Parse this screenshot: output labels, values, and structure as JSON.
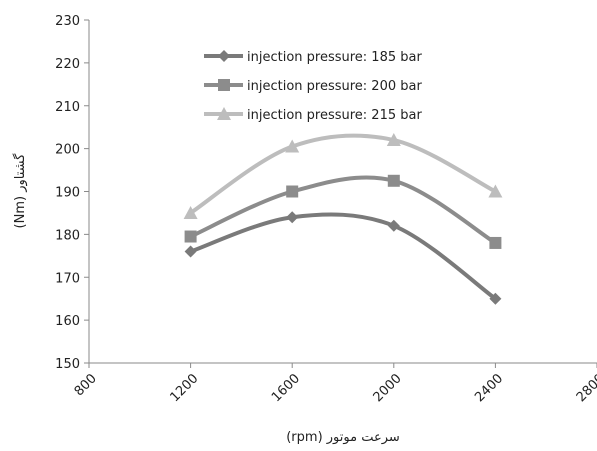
{
  "chart_data": {
    "type": "line",
    "title": "",
    "xlabel": "سرعت موتور (rpm)",
    "ylabel": "گشتاور (Nm)",
    "xlim": [
      800,
      2800
    ],
    "ylim": [
      150,
      230
    ],
    "x_ticks": [
      "800",
      "1200",
      "1600",
      "2000",
      "2400",
      "2800"
    ],
    "y_ticks": [
      "150",
      "160",
      "170",
      "180",
      "190",
      "200",
      "210",
      "220",
      "230"
    ],
    "grid": false,
    "legend_position": "top-center",
    "smooth": true,
    "x": [
      1200,
      1600,
      2000,
      2400
    ],
    "series": [
      {
        "name": "injection pressure: 185 bar",
        "marker": "diamond",
        "color": "#7a7a7a",
        "values": [
          176,
          184,
          182,
          165
        ]
      },
      {
        "name": "injection pressure: 200 bar",
        "marker": "square",
        "color": "#8c8c8c",
        "values": [
          179.5,
          190,
          192.5,
          178
        ]
      },
      {
        "name": "injection pressure: 215 bar",
        "marker": "triangle",
        "color": "#bdbdbd",
        "values": [
          185,
          200.5,
          202,
          190
        ]
      }
    ]
  }
}
